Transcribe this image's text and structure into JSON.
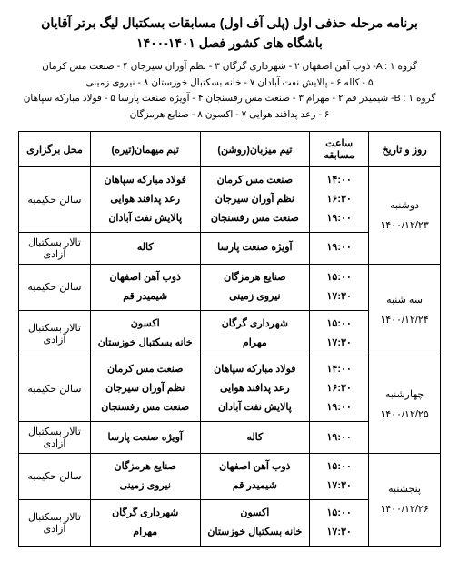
{
  "title_line1": "برنامه مرحله حذفی اول (پلی آف اول) مسابقات بسکتبال لیگ برتر آقایان",
  "title_line2": "باشگاه های کشور فصل ۱۴۰۱-۱۴۰۰",
  "group_a": "گروه A : ۱- ذوب آهن اصفهان ۲ - شهرداری گرگان ۳ - نظم آوران سیرجان ۴ - صنعت مس کرمان",
  "group_a2": "۵ - کاله ۶ - پالایش نفت آبادان ۷ - خانه بسکتبال خوزستان ۸ - نیروی زمینی",
  "group_b": "گروه B : ۱- شیمیدر قم ۲ - مهرام ۳ - صنعت مس رفسنجان ۴ - آویژه صنعت پارسا ۵ - فولاد مبارکه سپاهان",
  "group_b2": "۶ - رعد پدافند هوایی ۷ - اکسون ۸ - صنایع هرمزگان",
  "headers": {
    "date": "روز و تاریخ",
    "time": "ساعت مسابقه",
    "home": "تیم میزبان(روشن)",
    "away": "تیم میهمان(تیره)",
    "venue": "محل برگزاری"
  },
  "days": [
    {
      "date": "دوشنبه\n۱۴۰۰/۱۲/۲۳",
      "blocks": [
        {
          "times": "۱۴:۰۰\n۱۶:۳۰\n۱۹:۰۰",
          "home": "صنعت مس کرمان\nنظم آوران سیرجان\nصنعت مس رفسنجان",
          "away": "فولاد مبارکه سپاهان\nرعد پدافند هوایی\nپالایش نفت آبادان",
          "venue": "سالن حکیمیه"
        },
        {
          "times": "۱۹:۰۰",
          "home": "آویژه صنعت پارسا",
          "away": "کاله",
          "venue": "تالار بسکتبال آزادی"
        }
      ]
    },
    {
      "date": "سه شنبه\n۱۴۰۰/۱۲/۲۴",
      "blocks": [
        {
          "times": "۱۵:۰۰\n۱۷:۳۰",
          "home": "صنایع هرمزگان\nنیروی زمینی",
          "away": "ذوب آهن اصفهان\nشیمیدر قم",
          "venue": "سالن حکیمیه"
        },
        {
          "times": "۱۵:۰۰\n۱۷:۳۰",
          "home": "شهرداری گرگان\nمهرام",
          "away": "اکسون\nخانه بسکتبال خوزستان",
          "venue": "تالار بسکتبال آزادی"
        }
      ]
    },
    {
      "date": "چهارشنبه\n۱۴۰۰/۱۲/۲۵",
      "blocks": [
        {
          "times": "۱۴:۰۰\n۱۶:۳۰\n۱۹:۰۰",
          "home": "فولاد مبارکه سپاهان\nرعد پدافند هوایی\nپالایش نفت آبادان",
          "away": "صنعت مس کرمان\nنظم آوران سیرجان\nصنعت مس رفسنجان",
          "venue": "سالن حکیمیه"
        },
        {
          "times": "۱۹:۰۰",
          "home": "کاله",
          "away": "آویژه صنعت پارسا",
          "venue": "تالار بسکتبال آزادی"
        }
      ]
    },
    {
      "date": "پنجشنبه\n۱۴۰۰/۱۲/۲۶",
      "blocks": [
        {
          "times": "۱۵:۰۰\n۱۷:۳۰",
          "home": "ذوب آهن اصفهان\nشیمیدر قم",
          "away": "صنایع هرمزگان\nنیروی زمینی",
          "venue": "سالن حکیمیه"
        },
        {
          "times": "۱۵:۰۰\n۱۷:۳۰",
          "home": "اکسون\nخانه بسکتبال خوزستان",
          "away": "شهرداری گرگان\nمهرام",
          "venue": "تالار بسکتبال آزادی"
        }
      ]
    }
  ]
}
